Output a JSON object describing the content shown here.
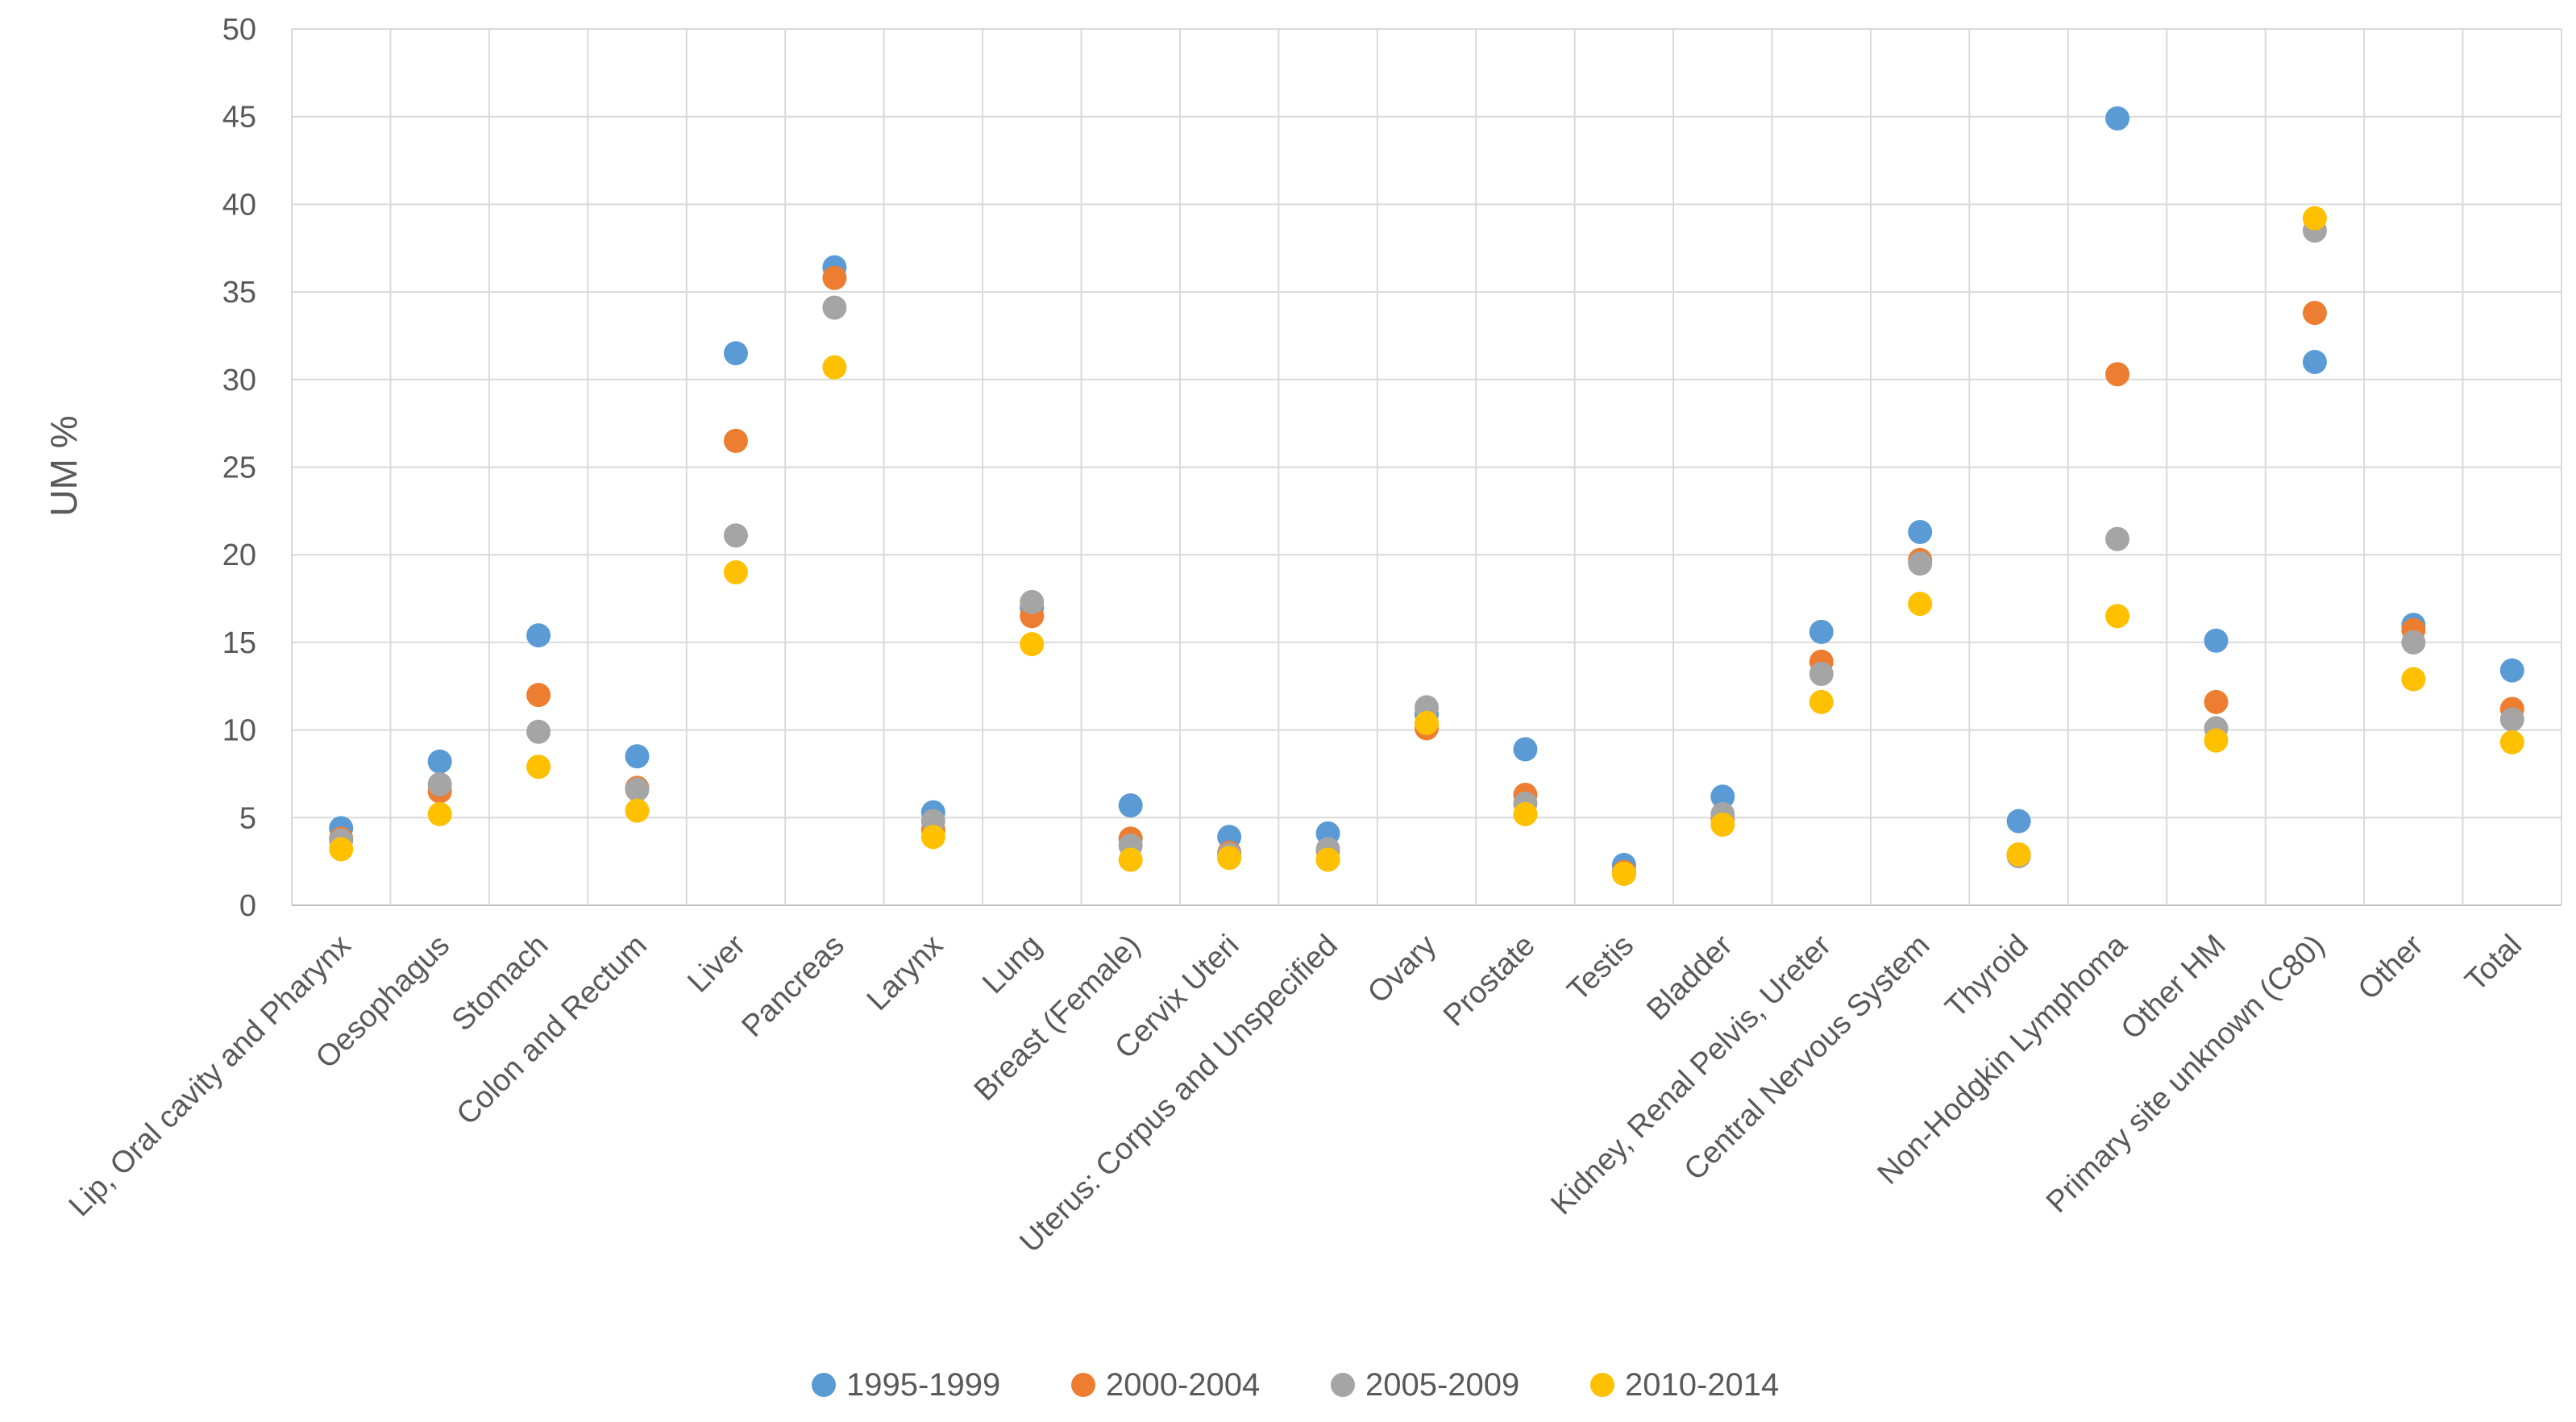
{
  "chart_data": {
    "type": "scatter",
    "title": "",
    "xlabel": "",
    "ylabel": "UM %",
    "ylim": [
      0,
      50
    ],
    "yticks": [
      0,
      5,
      10,
      15,
      20,
      25,
      30,
      35,
      40,
      45,
      50
    ],
    "grid": true,
    "legend_position": "bottom",
    "categories": [
      "Lip, Oral cavity and Pharynx",
      "Oesophagus",
      "Stomach",
      "Colon and Rectum",
      "Liver",
      "Pancreas",
      "Larynx",
      "Lung",
      "Breast (Female)",
      "Cervix Uteri",
      "Uterus: Corpus and Unspecified",
      "Ovary",
      "Prostate",
      "Testis",
      "Bladder",
      "Kidney, Renal Pelvis, Ureter",
      "Central Nervous System",
      "Thyroid",
      "Non-Hodgkin Lymphoma",
      "Other HM",
      "Primary site unknown (C80)",
      "Other",
      "Total"
    ],
    "series": [
      {
        "name": "1995-1999",
        "color": "#5B9BD5",
        "values": [
          4.4,
          8.2,
          15.4,
          8.5,
          31.5,
          36.4,
          5.3,
          17.0,
          5.7,
          3.9,
          4.1,
          10.9,
          8.9,
          2.3,
          6.2,
          15.6,
          21.3,
          4.8,
          44.9,
          15.1,
          31.0,
          16.0,
          13.4
        ]
      },
      {
        "name": "2000-2004",
        "color": "#ED7D31",
        "values": [
          3.8,
          6.5,
          12.0,
          6.7,
          26.5,
          35.8,
          4.3,
          16.5,
          3.8,
          3.0,
          3.1,
          10.1,
          6.3,
          1.9,
          5.0,
          13.9,
          19.7,
          2.9,
          30.3,
          11.6,
          33.8,
          15.7,
          11.2
        ]
      },
      {
        "name": "2005-2009",
        "color": "#A5A5A5",
        "values": [
          3.7,
          6.9,
          9.9,
          6.6,
          21.1,
          34.1,
          4.8,
          17.3,
          3.4,
          2.9,
          3.2,
          11.3,
          5.8,
          1.8,
          5.2,
          13.2,
          19.5,
          2.8,
          20.9,
          10.1,
          38.5,
          15.0,
          10.6
        ]
      },
      {
        "name": "2010-2014",
        "color": "#FFC000",
        "values": [
          3.2,
          5.2,
          7.9,
          5.4,
          19.0,
          30.7,
          3.9,
          14.9,
          2.6,
          2.7,
          2.6,
          10.4,
          5.2,
          1.8,
          4.6,
          11.6,
          17.2,
          2.9,
          16.5,
          9.4,
          39.2,
          12.9,
          9.3
        ]
      }
    ]
  }
}
